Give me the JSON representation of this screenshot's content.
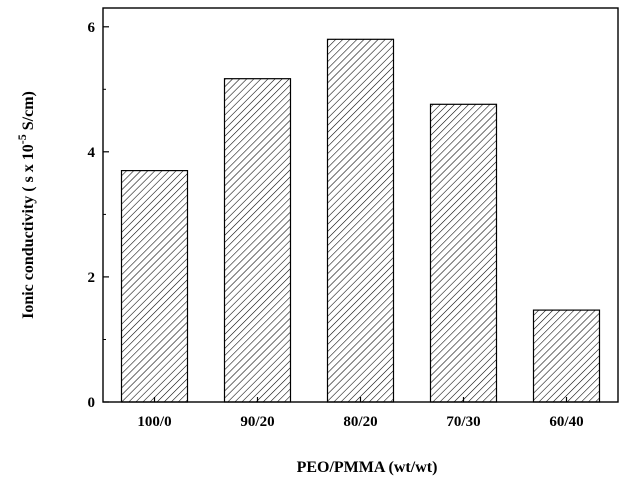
{
  "chart_data": {
    "type": "bar",
    "title": "",
    "xlabel": "PEO/PMMA (wt/wt)",
    "ylabel": {
      "prefix": "Ionic conductivity ( s  x 10",
      "superscript": "-5",
      "suffix": " S/cm)"
    },
    "categories": [
      "100/0",
      "90/20",
      "80/20",
      "70/30",
      "60/40"
    ],
    "values": [
      3.7,
      5.17,
      5.8,
      4.76,
      1.47
    ],
    "ylim": [
      0,
      6.3
    ],
    "yticks": [
      0,
      2,
      4,
      6
    ],
    "grid": false,
    "bar_fill": "diagonal hatch",
    "colors": {
      "bar_stroke": "#000000",
      "hatch": "#000000",
      "axis": "#000000",
      "background": "#ffffff"
    }
  }
}
